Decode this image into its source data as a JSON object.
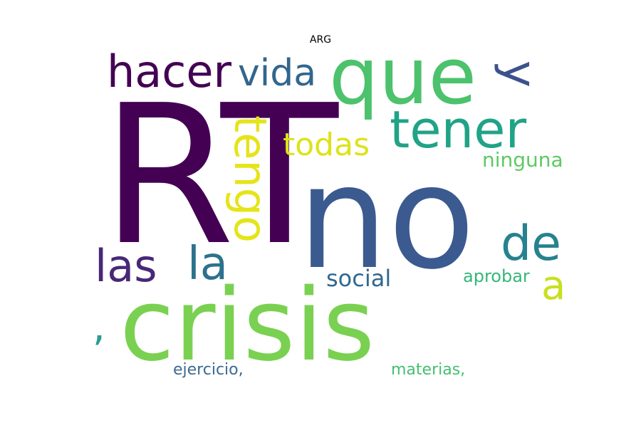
{
  "title": "ARG",
  "words": [
    {
      "text": "RT",
      "color": "#440154",
      "weight": 1.0,
      "rotated": false
    },
    {
      "text": "no",
      "color": "#3b5a8f",
      "weight": 0.95,
      "rotated": false
    },
    {
      "text": "crisis",
      "color": "#7ad151",
      "weight": 0.85,
      "rotated": false
    },
    {
      "text": "que",
      "color": "#4cc26c",
      "weight": 0.75,
      "rotated": false
    },
    {
      "text": "tener",
      "color": "#20a386",
      "weight": 0.6,
      "rotated": false
    },
    {
      "text": "hacer",
      "color": "#440154",
      "weight": 0.55,
      "rotated": false
    },
    {
      "text": "vida",
      "color": "#31668e",
      "weight": 0.5,
      "rotated": false
    },
    {
      "text": "y",
      "color": "#3b528b",
      "weight": 0.5,
      "rotated": true
    },
    {
      "text": "tengo",
      "color": "#e5e419",
      "weight": 0.5,
      "rotated": true
    },
    {
      "text": "todas",
      "color": "#dde318",
      "weight": 0.4,
      "rotated": false
    },
    {
      "text": "de",
      "color": "#26828e",
      "weight": 0.55,
      "rotated": false
    },
    {
      "text": "las",
      "color": "#482878",
      "weight": 0.45,
      "rotated": false
    },
    {
      "text": "la",
      "color": "#2c728e",
      "weight": 0.5,
      "rotated": false
    },
    {
      "text": "social",
      "color": "#31688e",
      "weight": 0.3,
      "rotated": false
    },
    {
      "text": "a",
      "color": "#c8e020",
      "weight": 0.4,
      "rotated": false
    },
    {
      "text": "ninguna",
      "color": "#5ec962",
      "weight": 0.25,
      "rotated": false
    },
    {
      "text": "aprobar",
      "color": "#35b779",
      "weight": 0.2,
      "rotated": false
    },
    {
      "text": ",",
      "color": "#2a9d8f",
      "weight": 0.35,
      "rotated": false
    },
    {
      "text": "ejercicio,",
      "color": "#3d6a8f",
      "weight": 0.2,
      "rotated": false
    },
    {
      "text": "materias,",
      "color": "#44bf70",
      "weight": 0.2,
      "rotated": false
    }
  ]
}
